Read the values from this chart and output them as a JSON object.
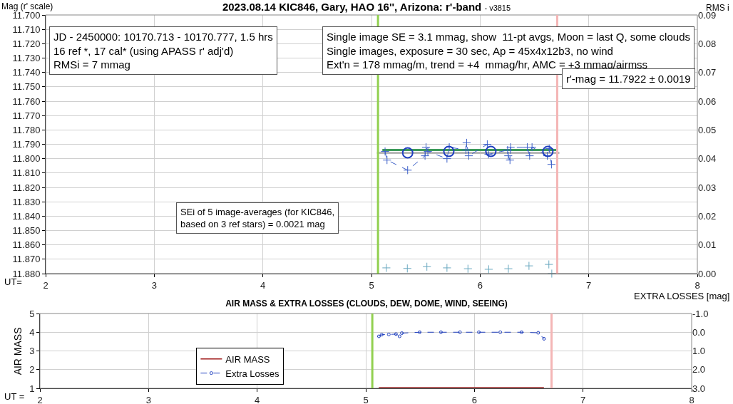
{
  "chart_data": [
    {
      "type": "scatter",
      "title": "2023.08.14 KIC846, Gary, HAO 16'', Arizona: r'-band",
      "subtitle": "- v3815",
      "xlabel": "UT=",
      "ylabel": "Mag (r' scale)",
      "y2label": "RMS i",
      "xlim": [
        2,
        8
      ],
      "xticks": [
        2,
        3,
        4,
        5,
        6,
        7,
        8
      ],
      "ylim": [
        11.88,
        11.7
      ],
      "yticks": [
        {
          "value": 11.7,
          "label": "11.700"
        },
        {
          "value": 11.71,
          "label": "11.710"
        },
        {
          "value": 11.72,
          "label": "11.720"
        },
        {
          "value": 11.73,
          "label": "11.730"
        },
        {
          "value": 11.74,
          "label": "11.740"
        },
        {
          "value": 11.75,
          "label": "11.750"
        },
        {
          "value": 11.76,
          "label": "11.760"
        },
        {
          "value": 11.77,
          "label": "11.770"
        },
        {
          "value": 11.78,
          "label": "11.780"
        },
        {
          "value": 11.79,
          "label": "11.790"
        },
        {
          "value": 11.8,
          "label": "11.800"
        },
        {
          "value": 11.81,
          "label": "11.810"
        },
        {
          "value": 11.82,
          "label": "11.820"
        },
        {
          "value": 11.83,
          "label": "11.830"
        },
        {
          "value": 11.84,
          "label": "11.840"
        },
        {
          "value": 11.85,
          "label": "11.850"
        },
        {
          "value": 11.86,
          "label": "11.860"
        },
        {
          "value": 11.87,
          "label": "11.870"
        },
        {
          "value": 11.88,
          "label": "11.880"
        }
      ],
      "y2lim": [
        0,
        0.09
      ],
      "y2ticks": [
        {
          "value": 0,
          "label": "0.00"
        },
        {
          "value": 0.01,
          "label": "0.01"
        },
        {
          "value": 0.02,
          "label": "0.02"
        },
        {
          "value": 0.03,
          "label": "0.03"
        },
        {
          "value": 0.04,
          "label": "0.04"
        },
        {
          "value": 0.05,
          "label": "0.05"
        },
        {
          "value": 0.06,
          "label": "0.06"
        },
        {
          "value": 0.07,
          "label": "0.07"
        },
        {
          "value": 0.08,
          "label": "0.08"
        },
        {
          "value": 0.09,
          "label": "0.09"
        }
      ],
      "grid": true,
      "legend": false,
      "series": [
        {
          "type": "line",
          "color": "#b8b8b8",
          "x": [
            5.05,
            6.73
          ],
          "values": [
            11.796,
            11.796
          ]
        },
        {
          "type": "line",
          "color": "#3c9a5a",
          "x": [
            5.1,
            6.7
          ],
          "values": [
            11.794,
            11.794
          ]
        },
        {
          "type": "line",
          "color": "#3b5fc8",
          "marker": "cross",
          "line_style": "dashed",
          "x": [
            5.125,
            5.143,
            5.333,
            5.493,
            5.502,
            5.519,
            5.695,
            5.716,
            5.869,
            5.876,
            5.896,
            6.066,
            6.077,
            6.253,
            6.259,
            6.275,
            6.281,
            6.434,
            6.456,
            6.478,
            6.618,
            6.636,
            6.657
          ],
          "values": [
            11.795,
            11.801,
            11.808,
            11.798,
            11.792,
            11.795,
            11.8,
            11.792,
            11.794,
            11.789,
            11.798,
            11.79,
            11.797,
            11.794,
            11.798,
            11.801,
            11.792,
            11.792,
            11.798,
            11.792,
            11.798,
            11.793,
            11.804
          ]
        },
        {
          "color": "#1f3fbf",
          "marker": "circle",
          "x": [
            5.333,
            5.712,
            6.099,
            6.624
          ],
          "values": [
            11.796,
            11.795,
            11.795,
            11.795
          ]
        },
        {
          "axis": "y2",
          "color": "#6aa8c0",
          "marker": "cross",
          "x": [
            5.137,
            5.33,
            5.51,
            5.695,
            5.888,
            6.079,
            6.26,
            6.45,
            6.633,
            6.66
          ],
          "values": [
            0.002,
            0.0018,
            0.0024,
            0.002,
            0.0017,
            0.0015,
            0.0017,
            0.0027,
            0.0032,
            0
          ]
        }
      ],
      "ref_lines": [
        {
          "axis": "x",
          "value": 5.06,
          "color": "#92d050"
        },
        {
          "axis": "x",
          "value": 6.71,
          "color": "#f4b6b6"
        }
      ],
      "annotations": [
        "JD - 2450000: 10170.713 - 10170.777, 1.5 hrs\n16 ref *, 17 cal* (using APASS r' adj'd)\nRMSi = 7 mmag",
        "Single image SE = 3.1 mmag, show  11-pt avgs, Moon = last Q, some clouds\nSingle images, exposure = 30 sec, Ap = 45x4x12b3, no wind\nExt'n = 178 mmag/m, trend = +4  mmag/hr, AMC = +3 mmag/airmss",
        "r'-mag = 11.7922 ± 0.0019",
        "SEi of 5 image-averages (for KIC846,\nbased on 3 ref stars) = 0.0021 mag"
      ]
    },
    {
      "type": "line",
      "title": "AIR MASS & EXTRA LOSSES (CLOUDS, DEW, DOME, WIND, SEEING)",
      "xlabel": "UT =",
      "ylabel": "AIR MASS",
      "y2label": "EXTRA LOSSES [mag]",
      "xlim": [
        2,
        8
      ],
      "xticks": [
        2,
        3,
        4,
        5,
        6,
        7,
        8
      ],
      "ylim": [
        1,
        5
      ],
      "yticks": [
        1,
        2,
        3,
        4,
        5
      ],
      "y2lim": [
        3,
        -1
      ],
      "y2ticks": [
        {
          "value": 3,
          "label": "3.0"
        },
        {
          "value": 2,
          "label": "2.0"
        },
        {
          "value": 1,
          "label": "1.0"
        },
        {
          "value": 0,
          "label": "0.0"
        },
        {
          "value": -1,
          "label": "-1.0"
        }
      ],
      "grid": true,
      "legend": "bottom left",
      "series": [
        {
          "name": "AIR MASS",
          "color": "#a01818",
          "x": [
            5.12,
            5.5,
            5.9,
            6.3,
            6.64
          ],
          "values": [
            1.04,
            1.04,
            1.04,
            1.04,
            1.04
          ]
        },
        {
          "name": "Extra Losses",
          "axis": "y2",
          "color": "#1f3fbf",
          "marker": "circle",
          "line_style": "dashed",
          "x": [
            5.121,
            5.147,
            5.212,
            5.278,
            5.311,
            5.332,
            5.496,
            5.692,
            5.867,
            6.041,
            6.238,
            6.434,
            6.587,
            6.641
          ],
          "values": [
            0.22,
            0.13,
            0.12,
            0.1,
            0.22,
            0.05,
            0,
            0,
            0,
            0,
            0,
            0,
            0.03,
            0.35
          ]
        }
      ],
      "ref_lines": [
        {
          "axis": "x",
          "value": 5.06,
          "color": "#92d050"
        },
        {
          "axis": "x",
          "value": 6.71,
          "color": "#f4b6b6"
        }
      ]
    }
  ]
}
